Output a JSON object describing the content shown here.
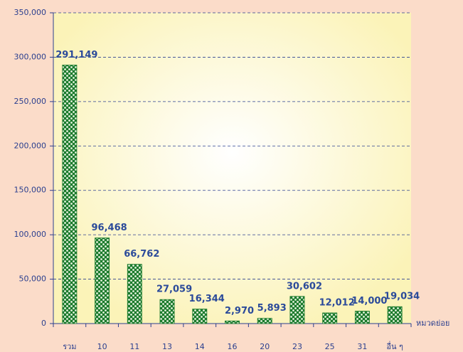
{
  "chart_data": {
    "type": "bar",
    "x_label": "หมวดย่อย",
    "categories": [
      "รวม",
      "10",
      "11",
      "13",
      "14",
      "16",
      "20",
      "23",
      "25",
      "31",
      "อื่น ๆ"
    ],
    "values": [
      291149,
      96468,
      66762,
      27059,
      16344,
      2970,
      5893,
      30602,
      12012,
      14000,
      19034
    ],
    "value_labels": [
      "291,149",
      "96,468",
      "66,762",
      "27,059",
      "16,344",
      "2,970",
      "5,893",
      "30,602",
      "12,012",
      "14,000",
      "19,034"
    ],
    "color": "#1b7a2c",
    "ylim": [
      0,
      350000
    ],
    "yticks": [
      0,
      {
        "value": 50000,
        "label": "50,000"
      },
      {
        "value": 100000,
        "label": "100,000"
      },
      {
        "value": 150000,
        "label": "150,000"
      },
      {
        "value": 200000,
        "label": "200,000"
      },
      {
        "value": 250000,
        "label": "250,000"
      },
      {
        "value": 300000,
        "label": "300,000"
      },
      {
        "value": 350000,
        "label": "350,000"
      }
    ],
    "grid": true
  }
}
